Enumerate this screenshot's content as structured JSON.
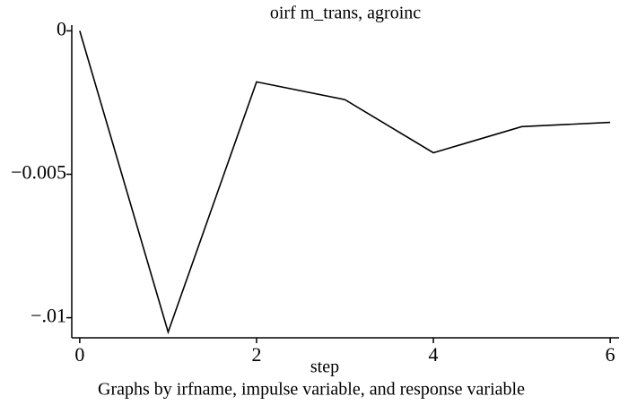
{
  "chart_data": {
    "type": "line",
    "title": "oirf m_trans, agroinc",
    "x_label": "step",
    "note": "Graphs by irfname, impulse variable, and response variable",
    "x": [
      0,
      1,
      2,
      3,
      4,
      5,
      6
    ],
    "series": [
      {
        "name": "oirf",
        "color": "#000000",
        "values": [
          0,
          -0.0105,
          -0.00178,
          -0.0024,
          -0.00425,
          -0.00334,
          -0.00319
        ]
      }
    ],
    "xlim": [
      -0.09,
      6.1
    ],
    "xticks": [
      0,
      2,
      4,
      6
    ],
    "ylim": [
      -0.0107,
      0.0002
    ],
    "yticks": [
      0,
      {
        "value": -0.005,
        "label": "−0.005"
      },
      {
        "value": -0.01,
        "label": "−.01"
      }
    ],
    "grid": false
  }
}
